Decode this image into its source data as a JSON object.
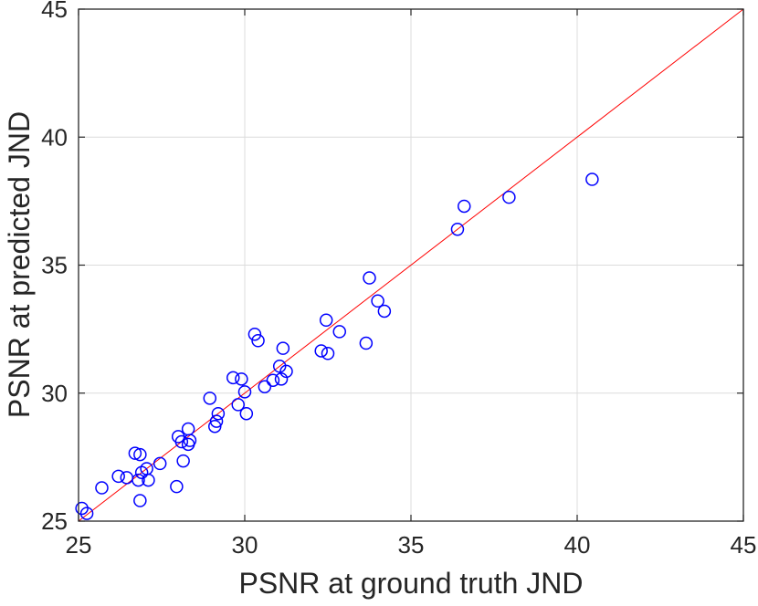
{
  "chart_data": {
    "type": "scatter",
    "title": "",
    "xlabel": "PSNR at ground truth JND",
    "ylabel": "PSNR at predicted JND",
    "xlim": [
      25,
      45
    ],
    "ylim": [
      25,
      45
    ],
    "xticks": [
      25,
      30,
      35,
      40,
      45
    ],
    "yticks": [
      25,
      30,
      35,
      40,
      45
    ],
    "grid": true,
    "marker": "circle-open",
    "marker_color": "#0000ff",
    "reference_line": {
      "from": [
        25,
        25
      ],
      "to": [
        45,
        45
      ],
      "color": "#ff0000"
    },
    "points": [
      [
        25.1,
        25.5
      ],
      [
        25.25,
        25.3
      ],
      [
        25.7,
        26.3
      ],
      [
        26.2,
        26.75
      ],
      [
        26.45,
        26.7
      ],
      [
        26.7,
        27.65
      ],
      [
        26.85,
        27.6
      ],
      [
        26.8,
        26.6
      ],
      [
        26.85,
        25.8
      ],
      [
        26.9,
        26.9
      ],
      [
        27.05,
        27.05
      ],
      [
        27.1,
        26.6
      ],
      [
        27.45,
        27.25
      ],
      [
        27.95,
        26.35
      ],
      [
        28.0,
        28.3
      ],
      [
        28.1,
        28.1
      ],
      [
        28.15,
        27.35
      ],
      [
        28.3,
        28.6
      ],
      [
        28.3,
        28.0
      ],
      [
        28.35,
        28.15
      ],
      [
        28.95,
        29.8
      ],
      [
        29.1,
        28.7
      ],
      [
        29.15,
        28.9
      ],
      [
        29.2,
        29.2
      ],
      [
        29.65,
        30.6
      ],
      [
        29.8,
        29.55
      ],
      [
        29.9,
        30.55
      ],
      [
        30.0,
        30.05
      ],
      [
        30.05,
        29.2
      ],
      [
        30.3,
        32.3
      ],
      [
        30.4,
        32.05
      ],
      [
        30.6,
        30.25
      ],
      [
        30.85,
        30.5
      ],
      [
        31.05,
        31.05
      ],
      [
        31.1,
        30.55
      ],
      [
        31.15,
        31.75
      ],
      [
        31.25,
        30.85
      ],
      [
        32.3,
        31.65
      ],
      [
        32.45,
        32.85
      ],
      [
        32.5,
        31.55
      ],
      [
        32.85,
        32.4
      ],
      [
        33.65,
        31.95
      ],
      [
        33.75,
        34.5
      ],
      [
        34.0,
        33.6
      ],
      [
        34.2,
        33.2
      ],
      [
        36.4,
        36.4
      ],
      [
        36.6,
        37.3
      ],
      [
        37.95,
        37.65
      ],
      [
        40.45,
        38.35
      ]
    ]
  }
}
